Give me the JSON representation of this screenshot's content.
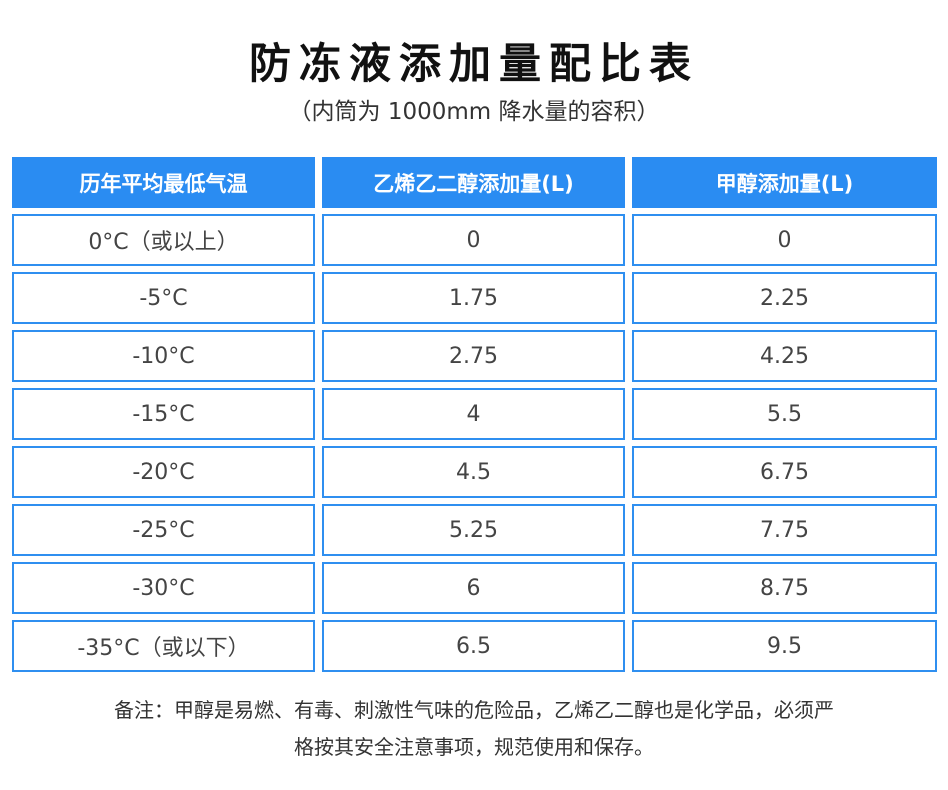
{
  "header": {
    "title": "防冻液添加量配比表",
    "subtitle": "（内筒为 1000mm 降水量的容积）"
  },
  "table": {
    "columns": [
      "历年平均最低气温",
      "乙烯乙二醇添加量(L)",
      "甲醇添加量(L)"
    ],
    "rows": [
      [
        "0°C（或以上）",
        0,
        0
      ],
      [
        "-5°C",
        1.75,
        2.25
      ],
      [
        "-10°C",
        2.75,
        4.25
      ],
      [
        "-15°C",
        4,
        5.5
      ],
      [
        "-20°C",
        4.5,
        6.75
      ],
      [
        "-25°C",
        5.25,
        7.75
      ],
      [
        "-30°C",
        6,
        8.75
      ],
      [
        "-35°C（或以下）",
        6.5,
        9.5
      ]
    ]
  },
  "note": {
    "lines": [
      "备注：甲醇是易燃、有毒、刺激性气味的危险品，乙烯乙二醇也是化学品，必须严",
      "格按其安全注意事项，规范使用和保存。"
    ]
  }
}
